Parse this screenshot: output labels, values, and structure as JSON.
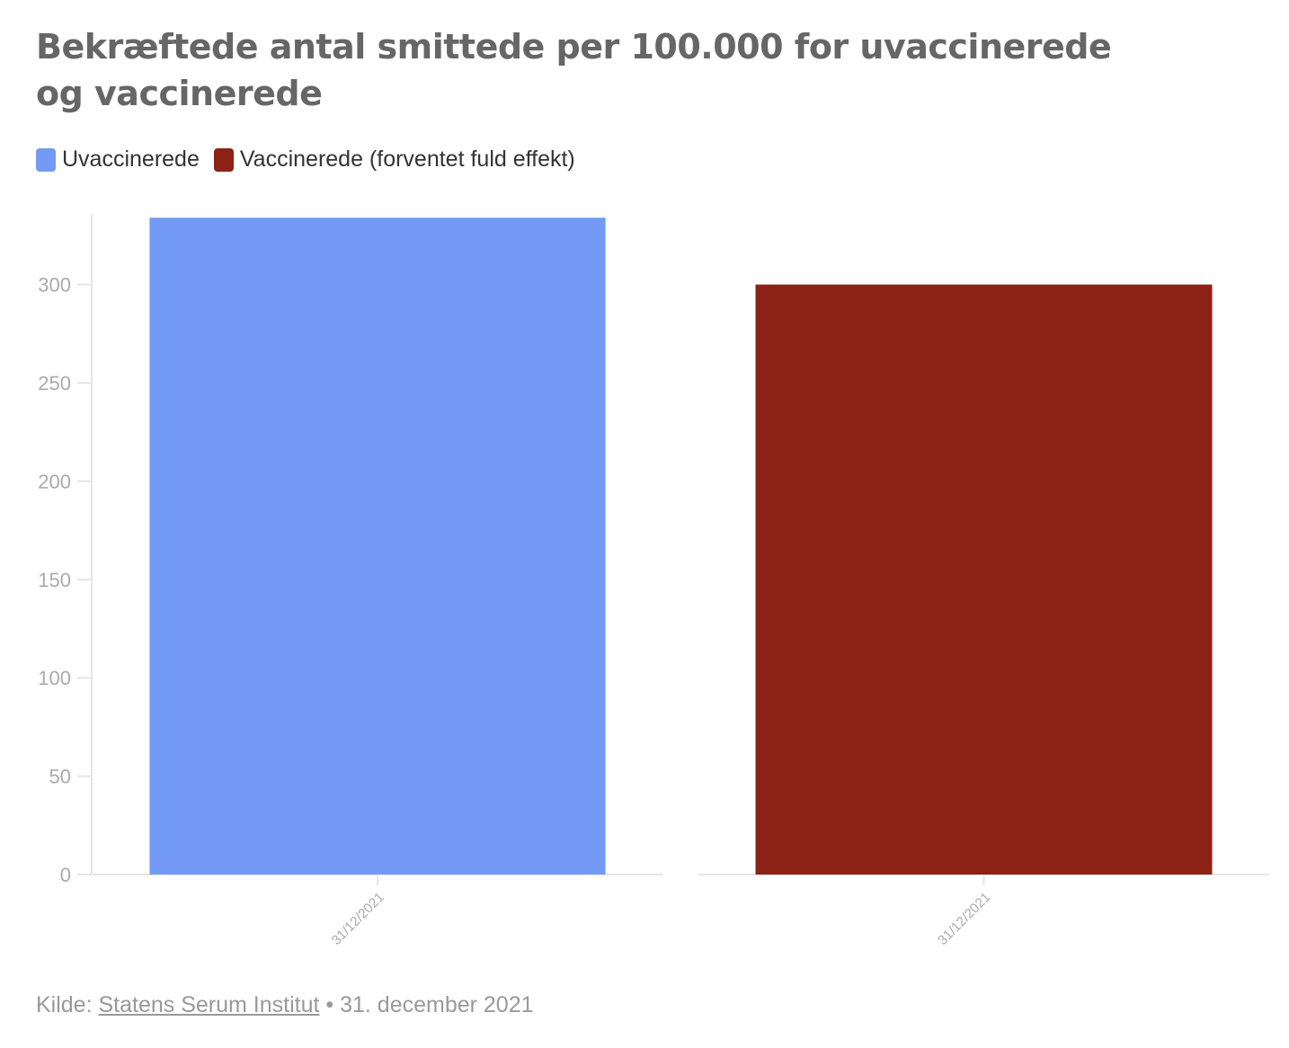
{
  "title": "Bekræftede antal smittede per 100.000 for uvaccinerede og vaccinerede",
  "legend": [
    {
      "label": "Uvaccinerede",
      "color": "#739bf6"
    },
    {
      "label": "Vaccinerede (forventet fuld effekt)",
      "color": "#8c2216"
    }
  ],
  "footer": {
    "source_prefix": "Kilde: ",
    "source_link": "Statens Serum Institut",
    "separator": " • ",
    "date": "31. december 2021"
  },
  "chart_data": {
    "type": "bar",
    "title": "Bekræftede antal smittede per 100.000 for uvaccinerede og vaccinerede",
    "categories": [
      "31/12/2021"
    ],
    "series": [
      {
        "name": "Uvaccinerede",
        "values": [
          334
        ],
        "color": "#739bf6"
      },
      {
        "name": "Vaccinerede (forventet fuld effekt)",
        "values": [
          300
        ],
        "color": "#8c2216"
      }
    ],
    "xlabel": "",
    "ylabel": "",
    "ylim": [
      0,
      335
    ],
    "yticks": [
      0,
      50,
      100,
      150,
      200,
      250,
      300
    ],
    "grid": false,
    "legend_position": "top-left",
    "layout": "small-multiples"
  }
}
